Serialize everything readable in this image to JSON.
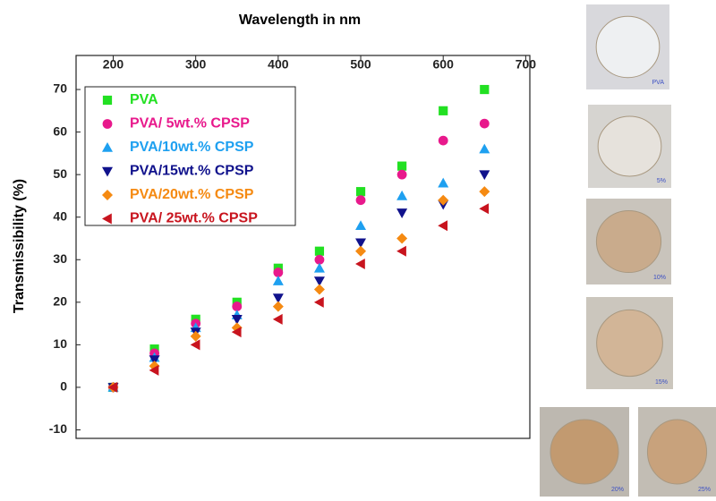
{
  "chart_data": {
    "type": "scatter",
    "title": "Wavelength in nm",
    "y_label": "Transmissibility (%)",
    "x": [
      200,
      250,
      300,
      350,
      400,
      450,
      500,
      550,
      600,
      650
    ],
    "series": [
      {
        "name": "PVA",
        "color": "#22e022",
        "marker": "square",
        "values": [
          0,
          9,
          16,
          20,
          28,
          32,
          46,
          52,
          65,
          70
        ]
      },
      {
        "name": "PVA/ 5wt.% CPSP",
        "color": "#e8198c",
        "marker": "circle",
        "values": [
          0,
          8,
          15,
          19,
          27,
          30,
          44,
          50,
          58,
          62
        ]
      },
      {
        "name": "PVA/10wt.% CPSP",
        "color": "#1ea0f0",
        "marker": "triangle-up",
        "values": [
          0,
          7,
          14,
          17,
          25,
          28,
          38,
          45,
          48,
          56
        ]
      },
      {
        "name": "PVA/15wt.% CPSP",
        "color": "#10128c",
        "marker": "triangle-down",
        "values": [
          0,
          6.5,
          13,
          16,
          21,
          25,
          34,
          41,
          43,
          50
        ]
      },
      {
        "name": "PVA/20wt.% CPSP",
        "color": "#f58a12",
        "marker": "diamond",
        "values": [
          0,
          5,
          12,
          14,
          19,
          23,
          32,
          35,
          44,
          46
        ]
      },
      {
        "name": "PVA/ 25wt.% CPSP",
        "color": "#c8141e",
        "marker": "triangle-left",
        "values": [
          0,
          4,
          10,
          13,
          16,
          20,
          29,
          32,
          38,
          42
        ]
      }
    ],
    "xlim": [
      155,
      705
    ],
    "xticks": [
      200,
      300,
      400,
      500,
      600,
      700
    ],
    "ylim": [
      -12,
      78
    ],
    "yticks": [
      -10,
      0,
      10,
      20,
      30,
      40,
      50,
      60,
      70
    ],
    "grid": false,
    "legend": "upper left"
  },
  "photo_labels": [
    "PVA",
    "5%",
    "10%",
    "15%",
    "20%",
    "25%"
  ]
}
